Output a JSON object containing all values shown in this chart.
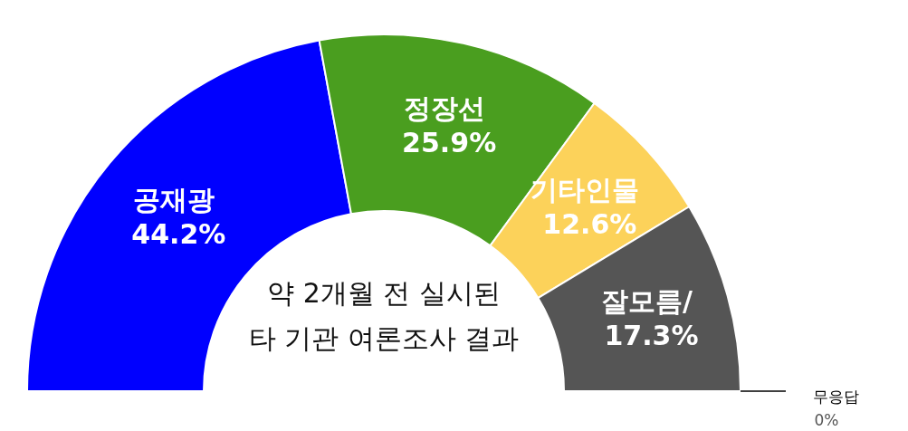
{
  "chart_data": {
    "type": "donut",
    "categories": [
      "공재광",
      "정장선",
      "기타인물",
      "잘모름/",
      "무응답"
    ],
    "values": [
      44.2,
      25.9,
      12.6,
      17.3,
      0
    ],
    "colors": [
      "#0000ff",
      "#4a9e1f",
      "#fcd25a",
      "#555555",
      "#000000"
    ],
    "value_labels": [
      "44.2%",
      "25.9%",
      "12.6%",
      "17.3%",
      "0%"
    ],
    "annotations": [
      "약 2개월 전 실시된",
      "타 기관 여론조사 결과"
    ]
  }
}
